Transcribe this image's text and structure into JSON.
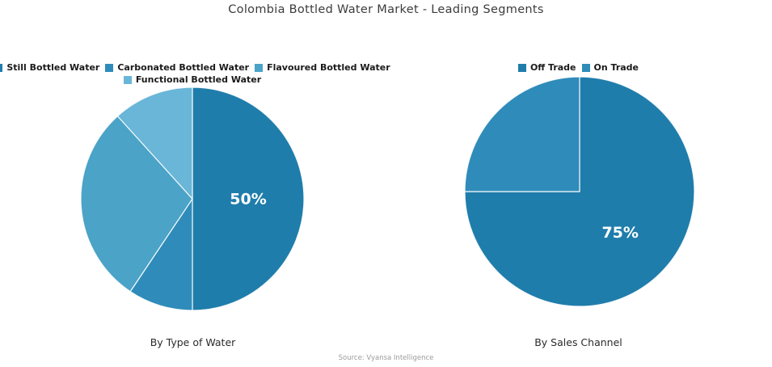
{
  "title": "Colombia Bottled Water Market - Leading Segments",
  "source": "Source: Vyansa Intelligence",
  "chart_data": [
    {
      "type": "pie",
      "title": "By Type of Water",
      "categories": [
        "Still Bottled Water",
        "Carbonated Bottled Water",
        "Flavoured Bottled Water",
        "Functional Bottled Water"
      ],
      "values": [
        50,
        9.4,
        28.9,
        11.7
      ],
      "colors": [
        "#1f7dab",
        "#2f8cba",
        "#4ba3c7",
        "#69b6d8"
      ],
      "data_labels": [
        "50%",
        "",
        "",
        ""
      ],
      "start_angle_deg_clockwise_from_top": 0,
      "legend_position": "top",
      "label_color": "#ffffff"
    },
    {
      "type": "pie",
      "title": "By Sales Channel",
      "categories": [
        "Off Trade",
        "On Trade"
      ],
      "values": [
        75,
        25
      ],
      "colors": [
        "#1f7dab",
        "#2f8cba"
      ],
      "data_labels": [
        "75%",
        ""
      ],
      "start_angle_deg_clockwise_from_top": 0,
      "legend_position": "top",
      "label_color": "#ffffff"
    }
  ]
}
